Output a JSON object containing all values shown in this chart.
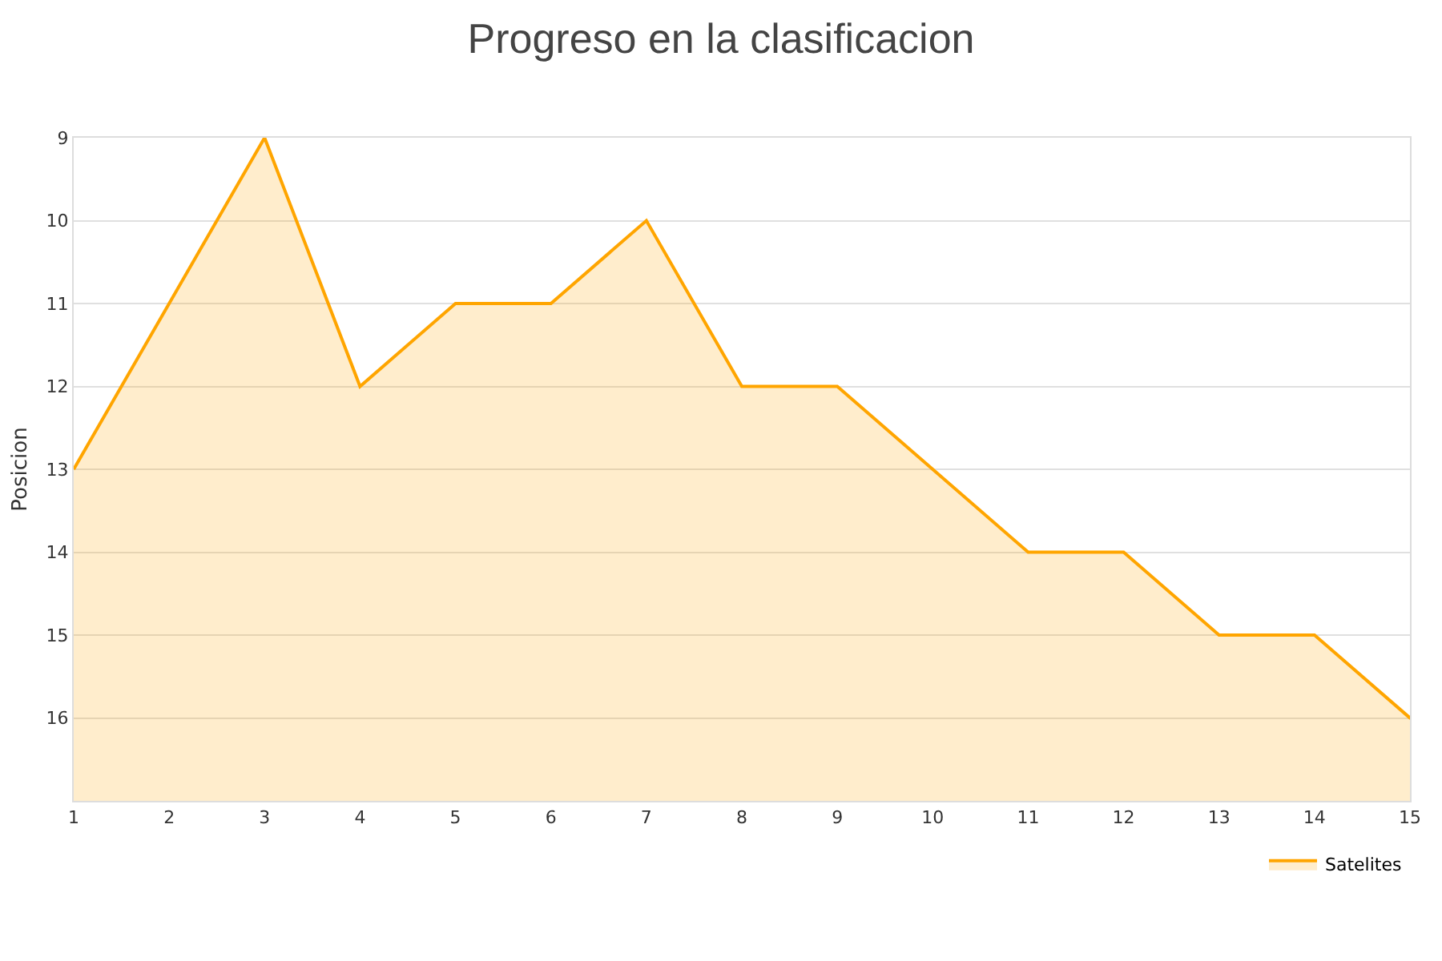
{
  "chart_data": {
    "type": "area",
    "title": "Progreso en la clasificacion",
    "ylabel": "Posicion",
    "x": [
      1,
      2,
      3,
      4,
      5,
      6,
      7,
      8,
      9,
      10,
      11,
      12,
      13,
      14,
      15
    ],
    "series": [
      {
        "name": "Satelites",
        "color": "#ffa500",
        "values": [
          13,
          11,
          9,
          12,
          11,
          11,
          10,
          12,
          12,
          13,
          14,
          14,
          15,
          15,
          16
        ]
      }
    ],
    "xlim": [
      1,
      15
    ],
    "xticks": [
      1,
      2,
      3,
      4,
      5,
      6,
      7,
      8,
      9,
      10,
      11,
      12,
      13,
      14,
      15
    ],
    "ylim": [
      17,
      9
    ],
    "yticks": [
      9,
      10,
      11,
      12,
      13,
      14,
      15,
      16
    ],
    "grid": "y",
    "legend": "bottom right"
  }
}
